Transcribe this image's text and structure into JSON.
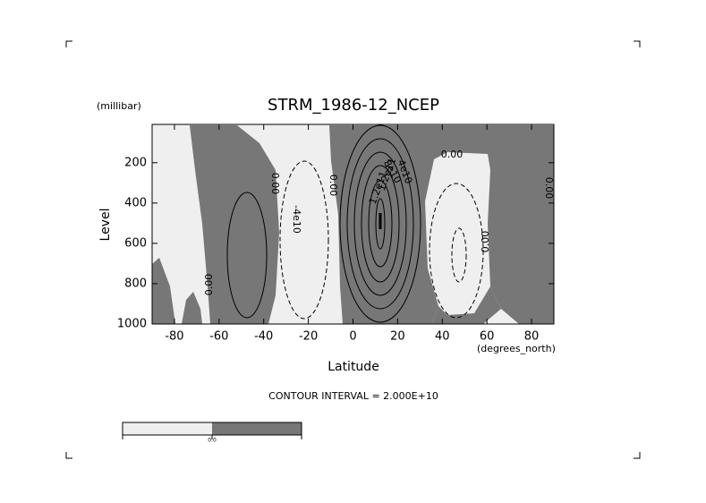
{
  "chart_data": {
    "type": "contour",
    "title": "STRM_1986-12_NCEP",
    "y_unit": "(millibar)",
    "ylabel": "Level",
    "xlabel": "Latitude",
    "x_unit": "(degrees_north)",
    "xlim": [
      -90,
      90
    ],
    "xticks": [
      -80,
      -60,
      -40,
      -20,
      0,
      20,
      40,
      60,
      80
    ],
    "ylim": [
      1000,
      10
    ],
    "yticks": [
      200,
      400,
      600,
      800,
      1000
    ],
    "positive_color": "#777777",
    "negative_color": "#efefef",
    "contour_interval": "CONTOUR INTERVAL = 2.000E+10",
    "contour_labels": [
      "0.00",
      "0.00",
      "0.00",
      "0.00",
      "0.00",
      "0.00",
      "-4e10",
      "4e10",
      "8e10",
      "1.2e11",
      "1.2e11"
    ],
    "colorbar_labels": [
      "0.0"
    ]
  }
}
